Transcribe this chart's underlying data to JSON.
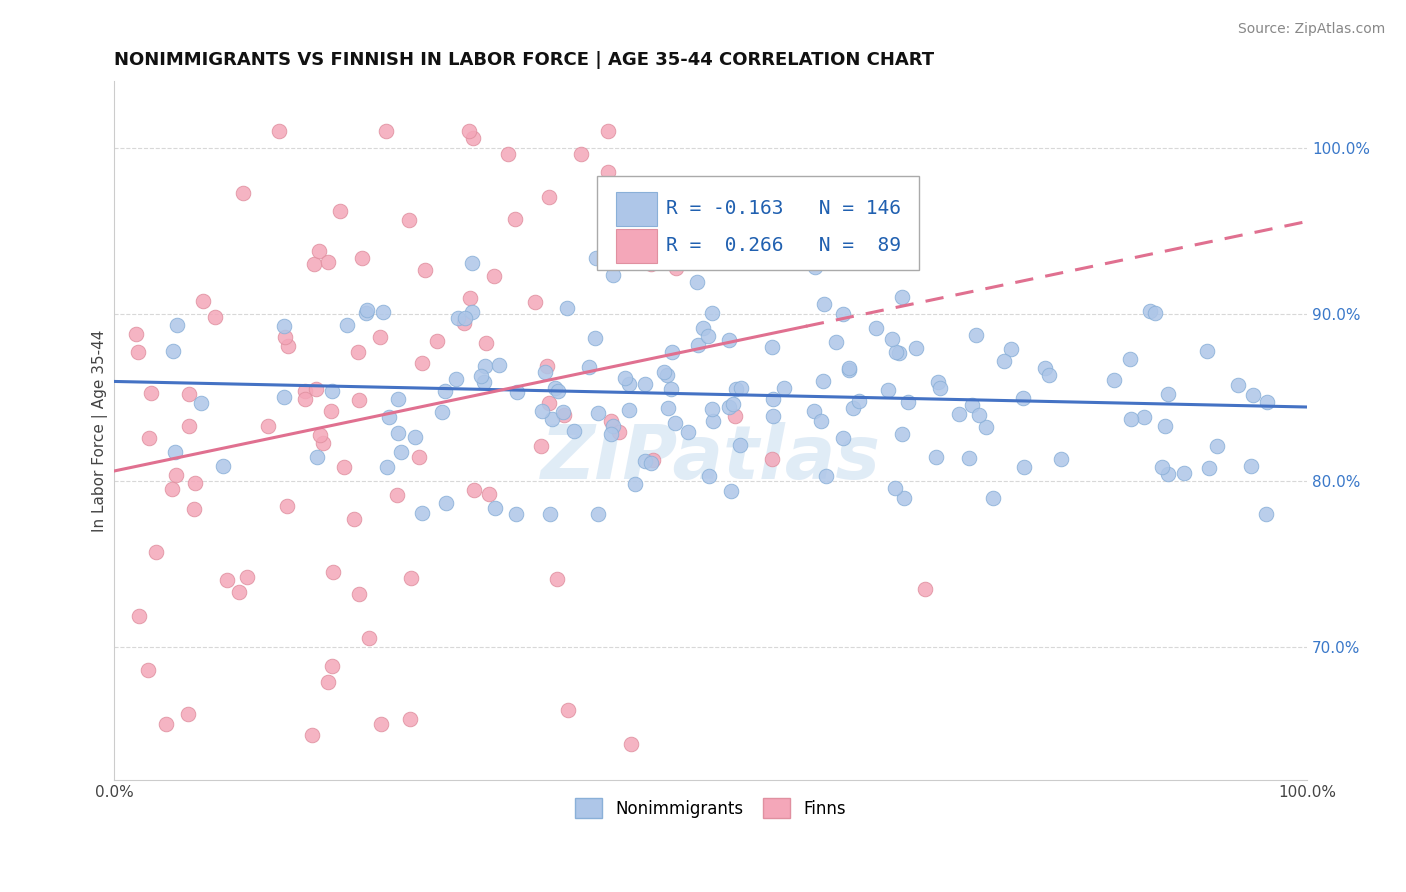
{
  "title": "NONIMMIGRANTS VS FINNISH IN LABOR FORCE | AGE 35-44 CORRELATION CHART",
  "source": "Source: ZipAtlas.com",
  "ylabel": "In Labor Force | Age 35-44",
  "xlim": [
    0.0,
    1.0
  ],
  "ylim": [
    0.62,
    1.04
  ],
  "yticks": [
    0.7,
    0.8,
    0.9,
    1.0
  ],
  "ytick_labels": [
    "70.0%",
    "80.0%",
    "90.0%",
    "100.0%"
  ],
  "xtick_labels": [
    "0.0%",
    "100.0%"
  ],
  "xticks": [
    0.0,
    1.0
  ],
  "nonimmigrant_R": -0.163,
  "nonimmigrant_N": 146,
  "finn_R": 0.266,
  "finn_N": 89,
  "blue_color": "#aec6e8",
  "pink_color": "#f4a7b9",
  "blue_line_color": "#4472c4",
  "pink_line_color": "#e07090",
  "blue_marker_edge": "#8ab0d8",
  "pink_marker_edge": "#e090a0",
  "background_color": "#ffffff",
  "grid_color": "#d8d8d8",
  "watermark": "ZIPatlas",
  "watermark_color": "#c8ddf0",
  "title_fontsize": 13,
  "axis_label_fontsize": 11,
  "tick_fontsize": 11,
  "legend_fontsize": 14,
  "source_fontsize": 10
}
